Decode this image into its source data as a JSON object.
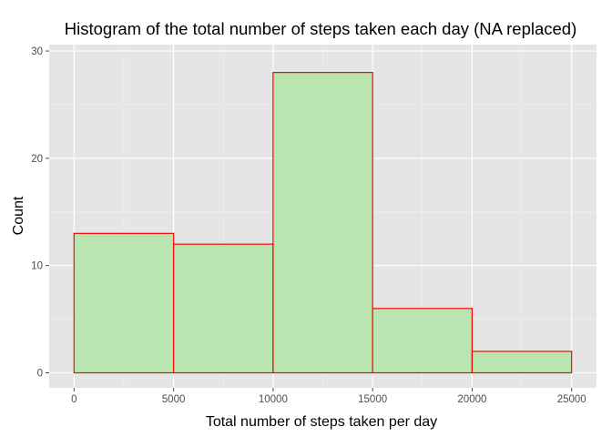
{
  "chart_data": {
    "type": "bar",
    "title": "Histogram of the total number of steps taken each day (NA replaced)",
    "xlabel": "Total number of steps taken per day",
    "ylabel": "Count",
    "bins": [
      {
        "start": 0,
        "end": 5000,
        "count": 13
      },
      {
        "start": 5000,
        "end": 10000,
        "count": 12
      },
      {
        "start": 10000,
        "end": 15000,
        "count": 28
      },
      {
        "start": 15000,
        "end": 20000,
        "count": 6
      },
      {
        "start": 20000,
        "end": 25000,
        "count": 2
      }
    ],
    "xlim": [
      -1250,
      26250
    ],
    "ylim": [
      -1.4,
      30.6
    ],
    "x_ticks": [
      0,
      5000,
      10000,
      15000,
      20000,
      25000
    ],
    "x_tick_labels": [
      "0",
      "5000",
      "10000",
      "15000",
      "20000",
      "25000"
    ],
    "y_ticks": [
      0,
      10,
      20,
      30
    ],
    "y_tick_labels": [
      "0",
      "10",
      "20",
      "30"
    ],
    "grid": true,
    "colors": {
      "panel_background": "#e5e5e5",
      "grid_major": "#ffffff",
      "grid_minor": "#f2f2f2",
      "bar_fill": "#b9e5b0",
      "bar_stroke": "#ff0000"
    }
  }
}
